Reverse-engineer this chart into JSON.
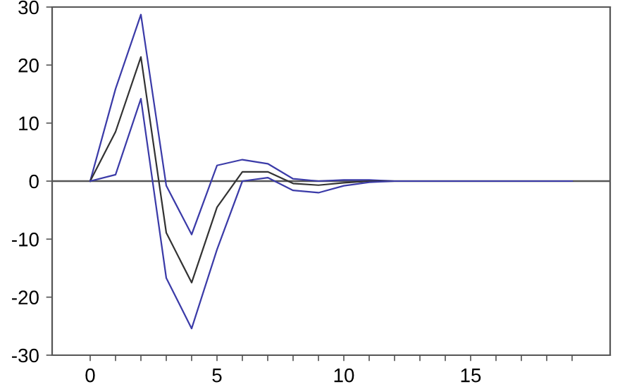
{
  "chart_data": {
    "type": "line",
    "x": [
      0,
      1,
      2,
      3,
      4,
      5,
      6,
      7,
      8,
      9,
      10,
      11,
      12,
      13,
      14,
      15,
      16,
      17,
      18,
      19
    ],
    "series": [
      {
        "color": "#3b3ba8",
        "values": [
          0,
          15.9,
          28.7,
          -0.8,
          -9.2,
          2.7,
          3.7,
          3.0,
          0.4,
          0.0,
          0.2,
          0.2,
          0,
          0,
          0,
          0,
          0,
          0,
          0,
          0
        ]
      },
      {
        "color": "#333333",
        "values": [
          0,
          8.5,
          21.4,
          -8.9,
          -17.5,
          -4.5,
          1.6,
          1.6,
          -0.4,
          -0.7,
          -0.3,
          0,
          0,
          0,
          0,
          0,
          0,
          0,
          0,
          0
        ]
      },
      {
        "color": "#3b3ba8",
        "values": [
          0,
          1.1,
          14.2,
          -16.7,
          -25.4,
          -11.8,
          0,
          0.6,
          -1.6,
          -2.0,
          -0.8,
          -0.2,
          0,
          0,
          0,
          0,
          0,
          0,
          0,
          0
        ]
      }
    ],
    "xlim": [
      -1.5,
      20.5
    ],
    "xticks": [
      0,
      {
        "value": 1,
        "label": null
      },
      {
        "value": 2,
        "label": null
      },
      {
        "value": 3,
        "label": null
      },
      {
        "value": 4,
        "label": null
      },
      5,
      {
        "value": 6,
        "label": null
      },
      {
        "value": 7,
        "label": null
      },
      {
        "value": 8,
        "label": null
      },
      {
        "value": 9,
        "label": null
      },
      10,
      {
        "value": 11,
        "label": null
      },
      {
        "value": 12,
        "label": null
      },
      {
        "value": 13,
        "label": null
      },
      {
        "value": 14,
        "label": null
      },
      15,
      {
        "value": 16,
        "label": null
      },
      {
        "value": 17,
        "label": null
      },
      {
        "value": 18,
        "label": null
      },
      {
        "value": 19,
        "label": null
      }
    ],
    "ylim": [
      -30,
      30
    ],
    "yticks": [
      -30,
      -20,
      -10,
      0,
      10,
      20,
      30
    ],
    "ref_lines": [
      {
        "axis": "y",
        "value": 0,
        "color": "#555555"
      }
    ],
    "grid": false,
    "legend": false,
    "marker": "none",
    "line_style": "solid"
  }
}
